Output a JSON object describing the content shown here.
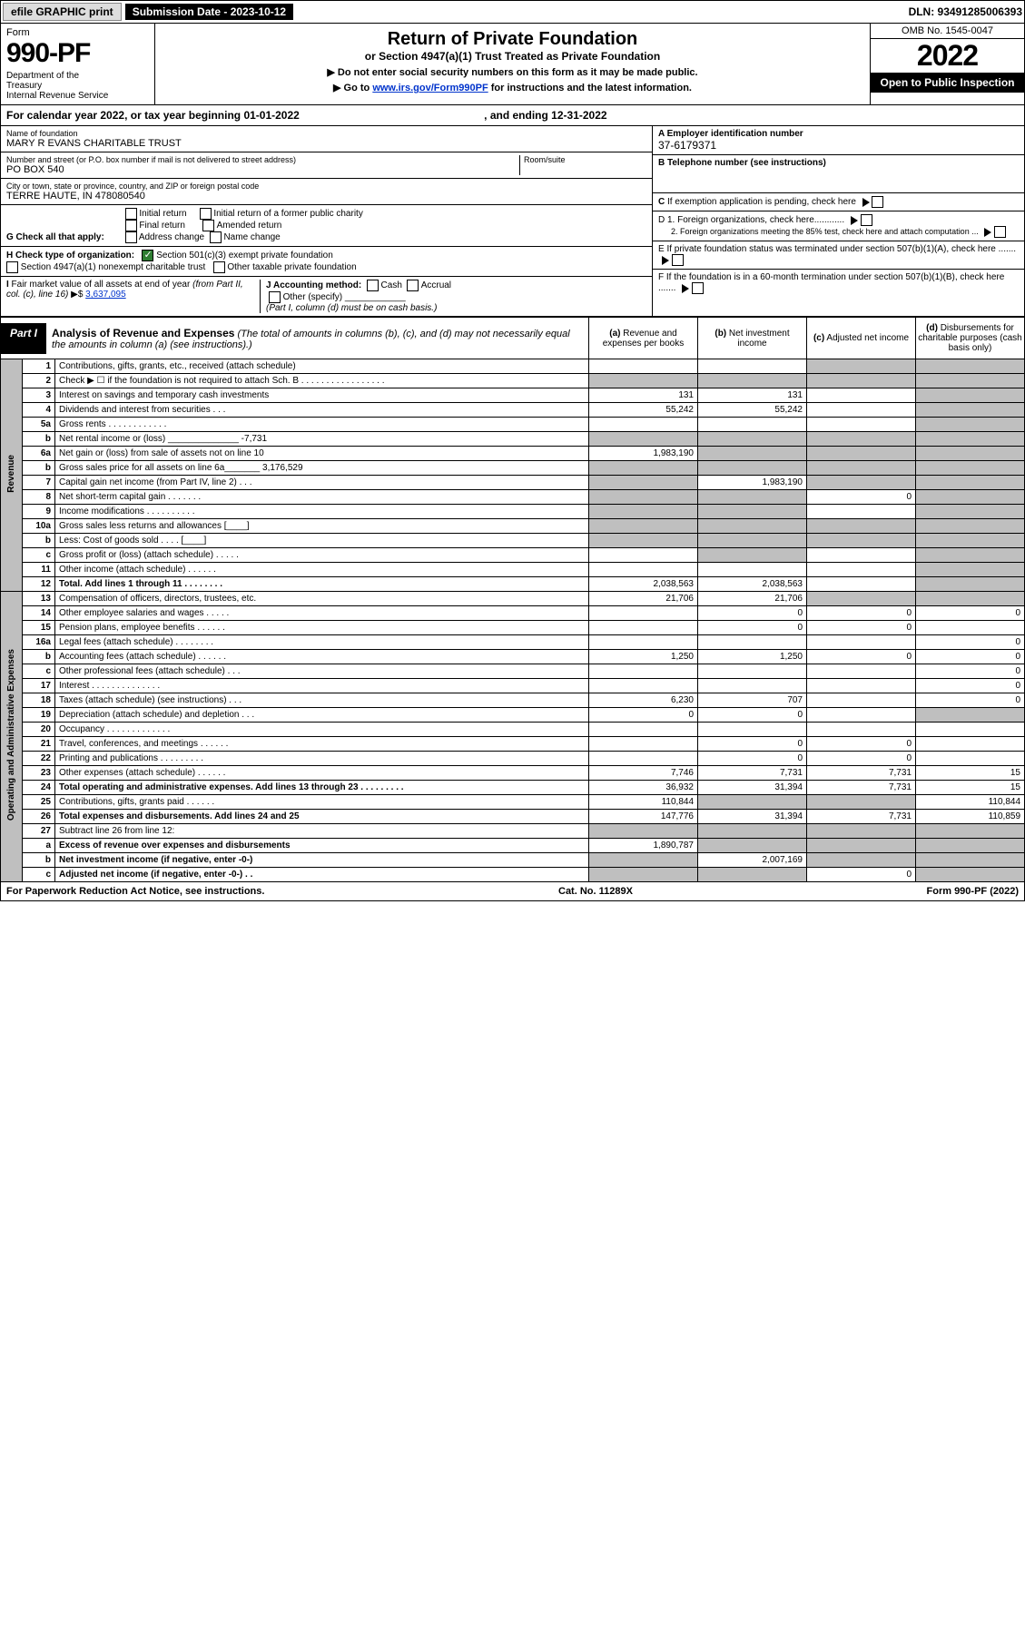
{
  "topbar": {
    "efile": "efile GRAPHIC print",
    "sub_date_label": "Submission Date - 2023-10-12",
    "dln": "DLN: 93491285006393"
  },
  "header": {
    "form_label": "Form",
    "form_num": "990-PF",
    "dept": "Department of the Treasury\nInternal Revenue Service",
    "title": "Return of Private Foundation",
    "subtitle": "or Section 4947(a)(1) Trust Treated as Private Foundation",
    "note1": "▶ Do not enter social security numbers on this form as it may be made public.",
    "note2_pre": "▶ Go to ",
    "note2_link": "www.irs.gov/Form990PF",
    "note2_post": " for instructions and the latest information.",
    "omb": "OMB No. 1545-0047",
    "year": "2022",
    "open": "Open to Public Inspection"
  },
  "cal": {
    "text": "For calendar year 2022, or tax year beginning 01-01-2022",
    "end": ", and ending 12-31-2022"
  },
  "name": {
    "lbl": "Name of foundation",
    "val": "MARY R EVANS CHARITABLE TRUST"
  },
  "addr": {
    "lbl": "Number and street (or P.O. box number if mail is not delivered to street address)",
    "val": "PO BOX 540",
    "room_lbl": "Room/suite"
  },
  "city": {
    "lbl": "City or town, state or province, country, and ZIP or foreign postal code",
    "val": "TERRE HAUTE, IN  478080540"
  },
  "right": {
    "a_lbl": "A Employer identification number",
    "a_val": "37-6179371",
    "b_lbl": "B Telephone number (see instructions)",
    "c_lbl": "C If exemption application is pending, check here",
    "d1": "D 1. Foreign organizations, check here............",
    "d2": "2. Foreign organizations meeting the 85% test, check here and attach computation ...",
    "e": "E If private foundation status was terminated under section 507(b)(1)(A), check here .......",
    "f": "F If the foundation is in a 60-month termination under section 507(b)(1)(B), check here ......."
  },
  "g": {
    "lbl": "G Check all that apply:",
    "opts": [
      "Initial return",
      "Final return",
      "Address change",
      "Initial return of a former public charity",
      "Amended return",
      "Name change"
    ]
  },
  "h": {
    "lbl": "H Check type of organization:",
    "opt1": "Section 501(c)(3) exempt private foundation",
    "opt2": "Section 4947(a)(1) nonexempt charitable trust",
    "opt3": "Other taxable private foundation"
  },
  "i": {
    "lbl": "I Fair market value of all assets at end of year (from Part II, col. (c), line 16) ▶$ ",
    "val": "3,637,095"
  },
  "j": {
    "lbl": "J Accounting method:",
    "cash": "Cash",
    "accrual": "Accrual",
    "other": "Other (specify)",
    "note": "(Part I, column (d) must be on cash basis.)"
  },
  "part1": {
    "tag": "Part I",
    "title": "Analysis of Revenue and Expenses",
    "note": "(The total of amounts in columns (b), (c), and (d) may not necessarily equal the amounts in column (a) (see instructions).)"
  },
  "cols": {
    "a": "(a) Revenue and expenses per books",
    "b": "(b) Net investment income",
    "c": "(c) Adjusted net income",
    "d": "(d) Disbursements for charitable purposes (cash basis only)"
  },
  "side": {
    "rev": "Revenue",
    "exp": "Operating and Administrative Expenses"
  },
  "rows": [
    {
      "n": "1",
      "d": "Contributions, gifts, grants, etc., received (attach schedule)",
      "a": "",
      "b": "",
      "c": "g",
      "dd": "g"
    },
    {
      "n": "2",
      "d": "Check ▶ ☐ if the foundation is not required to attach Sch. B  .  .  .  .  .  .  .  .  .  .  .  .  .  .  .  .  .",
      "a": "g",
      "b": "g",
      "c": "g",
      "dd": "g"
    },
    {
      "n": "3",
      "d": "Interest on savings and temporary cash investments",
      "a": "131",
      "b": "131",
      "c": "",
      "dd": "g"
    },
    {
      "n": "4",
      "d": "Dividends and interest from securities   .   .   .",
      "a": "55,242",
      "b": "55,242",
      "c": "",
      "dd": "g"
    },
    {
      "n": "5a",
      "d": "Gross rents   .   .   .   .   .   .   .   .   .   .   .   .",
      "a": "",
      "b": "",
      "c": "",
      "dd": "g"
    },
    {
      "n": "b",
      "d": "Net rental income or (loss) ______________ -7,731",
      "a": "g",
      "b": "g",
      "c": "g",
      "dd": "g"
    },
    {
      "n": "6a",
      "d": "Net gain or (loss) from sale of assets not on line 10",
      "a": "1,983,190",
      "b": "g",
      "c": "g",
      "dd": "g"
    },
    {
      "n": "b",
      "d": "Gross sales price for all assets on line 6a_______ 3,176,529",
      "a": "g",
      "b": "g",
      "c": "g",
      "dd": "g"
    },
    {
      "n": "7",
      "d": "Capital gain net income (from Part IV, line 2)   .   .   .",
      "a": "g",
      "b": "1,983,190",
      "c": "g",
      "dd": "g"
    },
    {
      "n": "8",
      "d": "Net short-term capital gain  .   .   .   .   .   .   .",
      "a": "g",
      "b": "g",
      "c": "0",
      "dd": "g"
    },
    {
      "n": "9",
      "d": "Income modifications .   .   .   .   .   .   .   .   .   .",
      "a": "g",
      "b": "g",
      "c": "",
      "dd": "g"
    },
    {
      "n": "10a",
      "d": "Gross sales less returns and allowances  [____]",
      "a": "g",
      "b": "g",
      "c": "g",
      "dd": "g"
    },
    {
      "n": "b",
      "d": "Less: Cost of goods sold   .   .   .   .   [____]",
      "a": "g",
      "b": "g",
      "c": "g",
      "dd": "g"
    },
    {
      "n": "c",
      "d": "Gross profit or (loss) (attach schedule)   .   .   .   .   .",
      "a": "",
      "b": "g",
      "c": "",
      "dd": "g"
    },
    {
      "n": "11",
      "d": "Other income (attach schedule)   .   .   .   .   .   .",
      "a": "",
      "b": "",
      "c": "",
      "dd": "g"
    },
    {
      "n": "12",
      "d": "Total. Add lines 1 through 11   .   .   .   .   .   .   .   .",
      "a": "2,038,563",
      "b": "2,038,563",
      "c": "",
      "dd": "g",
      "bold": true
    },
    {
      "n": "13",
      "d": "Compensation of officers, directors, trustees, etc.",
      "a": "21,706",
      "b": "21,706",
      "c": "g",
      "dd": "g"
    },
    {
      "n": "14",
      "d": "Other employee salaries and wages   .   .   .   .   .",
      "a": "",
      "b": "0",
      "c": "0",
      "dd": "0"
    },
    {
      "n": "15",
      "d": "Pension plans, employee benefits  .   .   .   .   .   .",
      "a": "",
      "b": "0",
      "c": "0",
      "dd": ""
    },
    {
      "n": "16a",
      "d": "Legal fees (attach schedule) .   .   .   .   .   .   .   .",
      "a": "",
      "b": "",
      "c": "",
      "dd": "0"
    },
    {
      "n": "b",
      "d": "Accounting fees (attach schedule) .   .   .   .   .   .",
      "a": "1,250",
      "b": "1,250",
      "c": "0",
      "dd": "0"
    },
    {
      "n": "c",
      "d": "Other professional fees (attach schedule)   .   .   .",
      "a": "",
      "b": "",
      "c": "",
      "dd": "0"
    },
    {
      "n": "17",
      "d": "Interest .   .   .   .   .   .   .   .   .   .   .   .   .   .",
      "a": "",
      "b": "",
      "c": "",
      "dd": "0"
    },
    {
      "n": "18",
      "d": "Taxes (attach schedule) (see instructions)   .   .   .",
      "a": "6,230",
      "b": "707",
      "c": "",
      "dd": "0"
    },
    {
      "n": "19",
      "d": "Depreciation (attach schedule) and depletion   .   .   .",
      "a": "0",
      "b": "0",
      "c": "",
      "dd": "g"
    },
    {
      "n": "20",
      "d": "Occupancy .   .   .   .   .   .   .   .   .   .   .   .   .",
      "a": "",
      "b": "",
      "c": "",
      "dd": ""
    },
    {
      "n": "21",
      "d": "Travel, conferences, and meetings .   .   .   .   .   .",
      "a": "",
      "b": "0",
      "c": "0",
      "dd": ""
    },
    {
      "n": "22",
      "d": "Printing and publications .   .   .   .   .   .   .   .   .",
      "a": "",
      "b": "0",
      "c": "0",
      "dd": ""
    },
    {
      "n": "23",
      "d": "Other expenses (attach schedule) .   .   .   .   .   .",
      "a": "7,746",
      "b": "7,731",
      "c": "7,731",
      "dd": "15"
    },
    {
      "n": "24",
      "d": "Total operating and administrative expenses. Add lines 13 through 23   .   .   .   .   .   .   .   .   .",
      "a": "36,932",
      "b": "31,394",
      "c": "7,731",
      "dd": "15",
      "bold": true
    },
    {
      "n": "25",
      "d": "Contributions, gifts, grants paid   .   .   .   .   .   .",
      "a": "110,844",
      "b": "g",
      "c": "g",
      "dd": "110,844"
    },
    {
      "n": "26",
      "d": "Total expenses and disbursements. Add lines 24 and 25",
      "a": "147,776",
      "b": "31,394",
      "c": "7,731",
      "dd": "110,859",
      "bold": true
    },
    {
      "n": "27",
      "d": "Subtract line 26 from line 12:",
      "a": "g",
      "b": "g",
      "c": "g",
      "dd": "g"
    },
    {
      "n": "a",
      "d": "Excess of revenue over expenses and disbursements",
      "a": "1,890,787",
      "b": "g",
      "c": "g",
      "dd": "g",
      "bold": true
    },
    {
      "n": "b",
      "d": "Net investment income (if negative, enter -0-)",
      "a": "g",
      "b": "2,007,169",
      "c": "g",
      "dd": "g",
      "bold": true
    },
    {
      "n": "c",
      "d": "Adjusted net income (if negative, enter -0-)   .   .",
      "a": "g",
      "b": "g",
      "c": "0",
      "dd": "g",
      "bold": true
    }
  ],
  "foot": {
    "left": "For Paperwork Reduction Act Notice, see instructions.",
    "mid": "Cat. No. 11289X",
    "right": "Form 990-PF (2022)"
  },
  "colors": {
    "grey": "#bfbfbf",
    "black": "#000000",
    "link": "#0033cc",
    "check": "#2e7d32"
  }
}
